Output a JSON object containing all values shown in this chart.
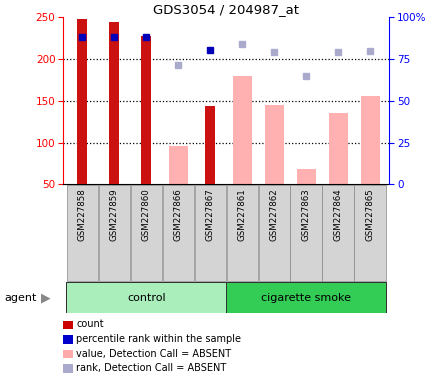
{
  "title": "GDS3054 / 204987_at",
  "samples": [
    "GSM227858",
    "GSM227859",
    "GSM227860",
    "GSM227866",
    "GSM227867",
    "GSM227861",
    "GSM227862",
    "GSM227863",
    "GSM227864",
    "GSM227865"
  ],
  "count_values": [
    248,
    244,
    228,
    null,
    144,
    null,
    null,
    null,
    null,
    null
  ],
  "absent_value_bars": [
    null,
    null,
    null,
    96,
    null,
    180,
    145,
    68,
    135,
    156
  ],
  "rank_dots_dark": [
    226,
    226,
    226,
    null,
    211,
    null,
    null,
    null,
    null,
    null
  ],
  "rank_dots_light": [
    null,
    null,
    null,
    193,
    null,
    218,
    209,
    180,
    209,
    210
  ],
  "ylim_left": [
    50,
    250
  ],
  "ylim_right": [
    0,
    100
  ],
  "yticks_left": [
    50,
    100,
    150,
    200,
    250
  ],
  "yticks_right": [
    0,
    25,
    50,
    75,
    100
  ],
  "ytick_labels_right": [
    "0",
    "25",
    "50",
    "75",
    "100%"
  ],
  "control_label": "control",
  "smoke_label": "cigarette smoke",
  "agent_label": "agent",
  "legend_items": [
    {
      "color": "#cc0000",
      "label": "count"
    },
    {
      "color": "#0000cc",
      "label": "percentile rank within the sample"
    },
    {
      "color": "#ffaaaa",
      "label": "value, Detection Call = ABSENT"
    },
    {
      "color": "#aaaacc",
      "label": "rank, Detection Call = ABSENT"
    }
  ]
}
